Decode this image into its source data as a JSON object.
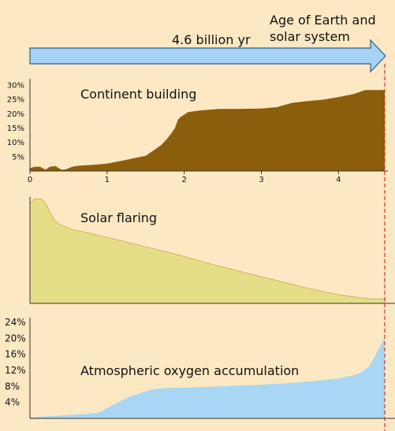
{
  "colors": {
    "background": "#fde8c4",
    "arrow_fill": "#a6d2f4",
    "arrow_stroke": "#2f5f86",
    "axis": "#333333",
    "continent": "#8b5e0b",
    "solar": "#e5de86",
    "solar_stroke": "#d4b060",
    "oxygen": "#a8d6f3",
    "present_line": "#e03c2c"
  },
  "arrow": {
    "label": "4.6 billion yr",
    "caption_line1": "Age of Earth and",
    "caption_line2": "solar system"
  },
  "chart_data": [
    {
      "type": "area",
      "title": "Continent building",
      "x": [
        0,
        0.06,
        0.13,
        0.2,
        0.26,
        0.33,
        0.41,
        0.47,
        0.55,
        0.65,
        0.8,
        1.0,
        1.2,
        1.35,
        1.5,
        1.62,
        1.7,
        1.77,
        1.83,
        1.88,
        1.92,
        1.96,
        2.05,
        2.2,
        2.45,
        2.7,
        3.0,
        3.2,
        3.4,
        3.6,
        3.8,
        4.0,
        4.2,
        4.35,
        4.6
      ],
      "y": [
        1,
        1.5,
        1.5,
        0.5,
        1.5,
        1.7,
        0.4,
        0.6,
        1.5,
        1.9,
        2.1,
        2.6,
        3.6,
        4.5,
        5.3,
        7.5,
        9,
        11,
        13,
        15,
        18,
        19,
        20.6,
        21.1,
        21.7,
        21.7,
        21.8,
        22.3,
        23.8,
        24.4,
        24.9,
        25.8,
        26.9,
        28.3,
        28.3
      ],
      "xlim": [
        0,
        4.6
      ],
      "ylim": [
        0,
        30
      ],
      "x_ticks": [
        "0",
        "1",
        "2",
        "3",
        "4"
      ],
      "y_ticks": [
        "5%",
        "10%",
        "15%",
        "20%",
        "25%",
        "30%"
      ]
    },
    {
      "type": "area",
      "title": "Solar flaring",
      "x": [
        0,
        0.06,
        0.15,
        0.22,
        0.27,
        0.32,
        0.4,
        0.55,
        0.8,
        1.1,
        1.5,
        1.9,
        2.3,
        2.8,
        3.2,
        3.6,
        4.0,
        4.3,
        4.45,
        4.6
      ],
      "y": [
        0.92,
        0.96,
        0.96,
        0.9,
        0.82,
        0.76,
        0.72,
        0.68,
        0.64,
        0.59,
        0.52,
        0.45,
        0.37,
        0.28,
        0.21,
        0.14,
        0.08,
        0.05,
        0.04,
        0.04
      ],
      "xlim": [
        0,
        4.6
      ],
      "ylim": [
        0,
        1
      ]
    },
    {
      "type": "area",
      "title": "Atmospheric oxygen accumulation",
      "x": [
        0,
        0.4,
        0.8,
        0.9,
        1.0,
        1.3,
        1.6,
        1.8,
        2.0,
        2.5,
        3.0,
        3.5,
        4.0,
        4.2,
        4.3,
        4.4,
        4.5,
        4.6
      ],
      "y": [
        0.3,
        0.7,
        1.2,
        1.5,
        2.6,
        5.5,
        7.3,
        7.6,
        7.7,
        8.0,
        8.4,
        9.0,
        10.0,
        10.8,
        11.5,
        13,
        16.5,
        20.2
      ],
      "xlim": [
        0,
        4.6
      ],
      "ylim": [
        0,
        24
      ],
      "y_ticks": [
        "4%",
        "8%",
        "12%",
        "16%",
        "20%",
        "24%"
      ]
    }
  ]
}
